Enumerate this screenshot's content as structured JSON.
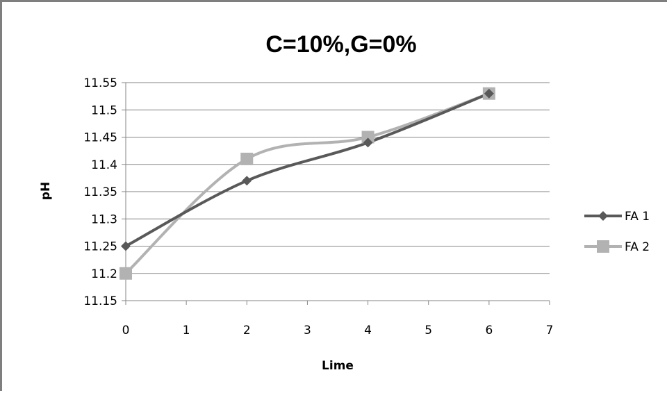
{
  "chart_data": {
    "type": "line",
    "title": "C=10%,G=0%",
    "xlabel": "Lime",
    "ylabel": "pH",
    "xlim": [
      0,
      7
    ],
    "ylim": [
      11.15,
      11.55
    ],
    "x_ticks": [
      "0",
      "1",
      "2",
      "3",
      "4",
      "5",
      "6",
      "7"
    ],
    "y_ticks": [
      "11.55",
      "11.5",
      "11.45",
      "11.4",
      "11.35",
      "11.3",
      "11.25",
      "11.2",
      "11.15"
    ],
    "grid": "horizontal",
    "smoothed": true,
    "legend_position": "right",
    "series": [
      {
        "name": "FA 1",
        "x": [
          0,
          2,
          4,
          6
        ],
        "y": [
          11.25,
          11.37,
          11.44,
          11.53
        ],
        "color": "#595959",
        "marker": "diamond"
      },
      {
        "name": "FA 2",
        "x": [
          0,
          2,
          4,
          6
        ],
        "y": [
          11.2,
          11.41,
          11.45,
          11.53
        ],
        "color": "#b2b2b2",
        "marker": "square"
      }
    ]
  }
}
